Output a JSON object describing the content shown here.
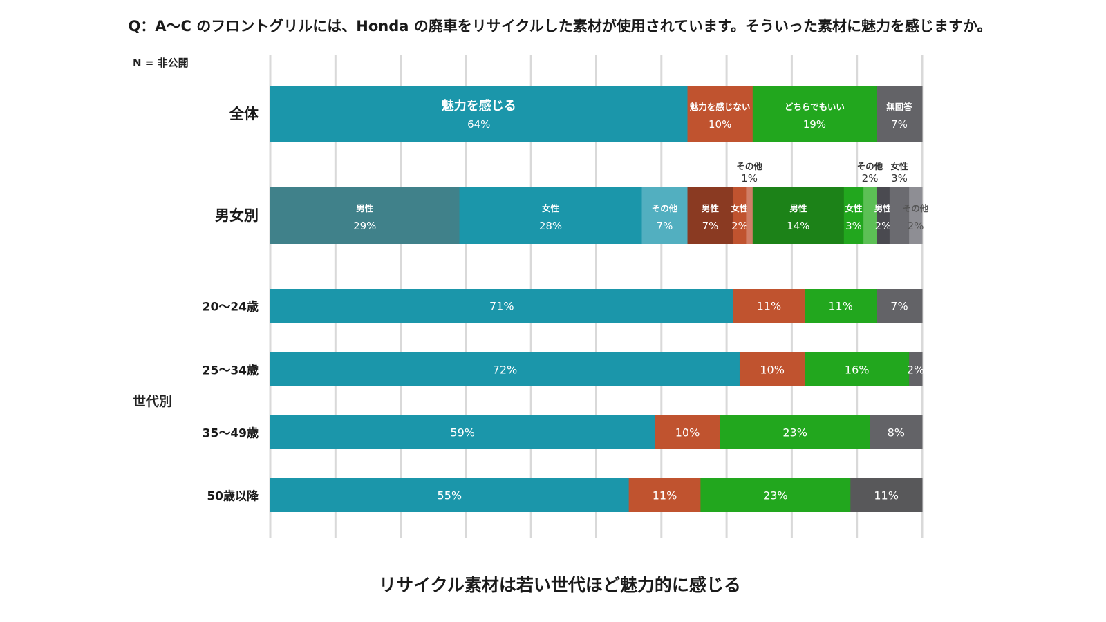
{
  "title": "Q：A〜C のフロントグリルには、Honda の廃車をリサイクルした素材が使用されています。そういった素材に魅力を感じますか。",
  "n_label": "N = 非公開",
  "footer": "リサイクル素材は若い世代ほど魅力的に感じる",
  "group_labels": {
    "age": "世代別"
  },
  "chart_data": {
    "type": "bar",
    "orientation": "horizontal",
    "stacked": true,
    "xlim": [
      0,
      100
    ],
    "grid": true,
    "grid_step": 10,
    "rows": [
      {
        "label": "全体",
        "segments": [
          {
            "name": "魅力を感じる",
            "value": 64,
            "text": "64%",
            "color": "#1b96aa"
          },
          {
            "name": "魅力を感じない",
            "value": 10,
            "text": "10%",
            "color": "#c0532f"
          },
          {
            "name": "どちらでもいい",
            "value": 19,
            "text": "19%",
            "color": "#22a71e"
          },
          {
            "name": "無回答",
            "value": 7,
            "text": "7%",
            "color": "#636367"
          }
        ]
      },
      {
        "label": "男女別",
        "segments": [
          {
            "name": "男性",
            "value": 29,
            "text": "29%",
            "color": "#40818a"
          },
          {
            "name": "女性",
            "value": 28,
            "text": "28%",
            "color": "#1b96aa"
          },
          {
            "name": "その他",
            "value": 7,
            "text": "7%",
            "color": "#52afc0"
          },
          {
            "name": "男性",
            "value": 7,
            "text": "7%",
            "color": "#8a3a22"
          },
          {
            "name": "女性",
            "value": 2,
            "text": "2%",
            "color": "#c0532f"
          },
          {
            "name": "その他",
            "value": 1,
            "text": "1%",
            "color": "#d07e66",
            "label_above": true
          },
          {
            "name": "男性",
            "value": 14,
            "text": "14%",
            "color": "#1c8218"
          },
          {
            "name": "女性",
            "value": 3,
            "text": "3%",
            "color": "#22a71e"
          },
          {
            "name": "その他",
            "value": 2,
            "text": "2%",
            "color": "#5cc055",
            "label_above": true
          },
          {
            "name": "男性",
            "value": 2,
            "text": "2%",
            "color": "#4a4a50"
          },
          {
            "name": "女性",
            "value": 3,
            "text": "3%",
            "color": "#6b6b70",
            "label_above": true
          },
          {
            "name": "その他",
            "value": 2,
            "text": "2%",
            "color": "#8e8e94",
            "label_dark": true
          }
        ]
      },
      {
        "label": "20〜24歳",
        "segments": [
          {
            "value": 71,
            "text": "71%",
            "color": "#1b96aa"
          },
          {
            "value": 11,
            "text": "11%",
            "color": "#c0532f"
          },
          {
            "value": 11,
            "text": "11%",
            "color": "#22a71e"
          },
          {
            "value": 7,
            "text": "7%",
            "color": "#636367"
          }
        ]
      },
      {
        "label": "25〜34歳",
        "segments": [
          {
            "value": 72,
            "text": "72%",
            "color": "#1b96aa"
          },
          {
            "value": 10,
            "text": "10%",
            "color": "#c0532f"
          },
          {
            "value": 16,
            "text": "16%",
            "color": "#22a71e"
          },
          {
            "value": 2,
            "text": "2%",
            "color": "#636367"
          }
        ]
      },
      {
        "label": "35〜49歳",
        "segments": [
          {
            "value": 59,
            "text": "59%",
            "color": "#1b96aa"
          },
          {
            "value": 10,
            "text": "10%",
            "color": "#c0532f"
          },
          {
            "value": 23,
            "text": "23%",
            "color": "#22a71e"
          },
          {
            "value": 8,
            "text": "8%",
            "color": "#636367"
          }
        ]
      },
      {
        "label": "50歳以降",
        "segments": [
          {
            "value": 55,
            "text": "55%",
            "color": "#1b96aa"
          },
          {
            "value": 11,
            "text": "11%",
            "color": "#c0532f"
          },
          {
            "value": 23,
            "text": "23%",
            "color": "#22a71e"
          },
          {
            "value": 11,
            "text": "11%",
            "color": "#58585a"
          }
        ]
      }
    ]
  }
}
